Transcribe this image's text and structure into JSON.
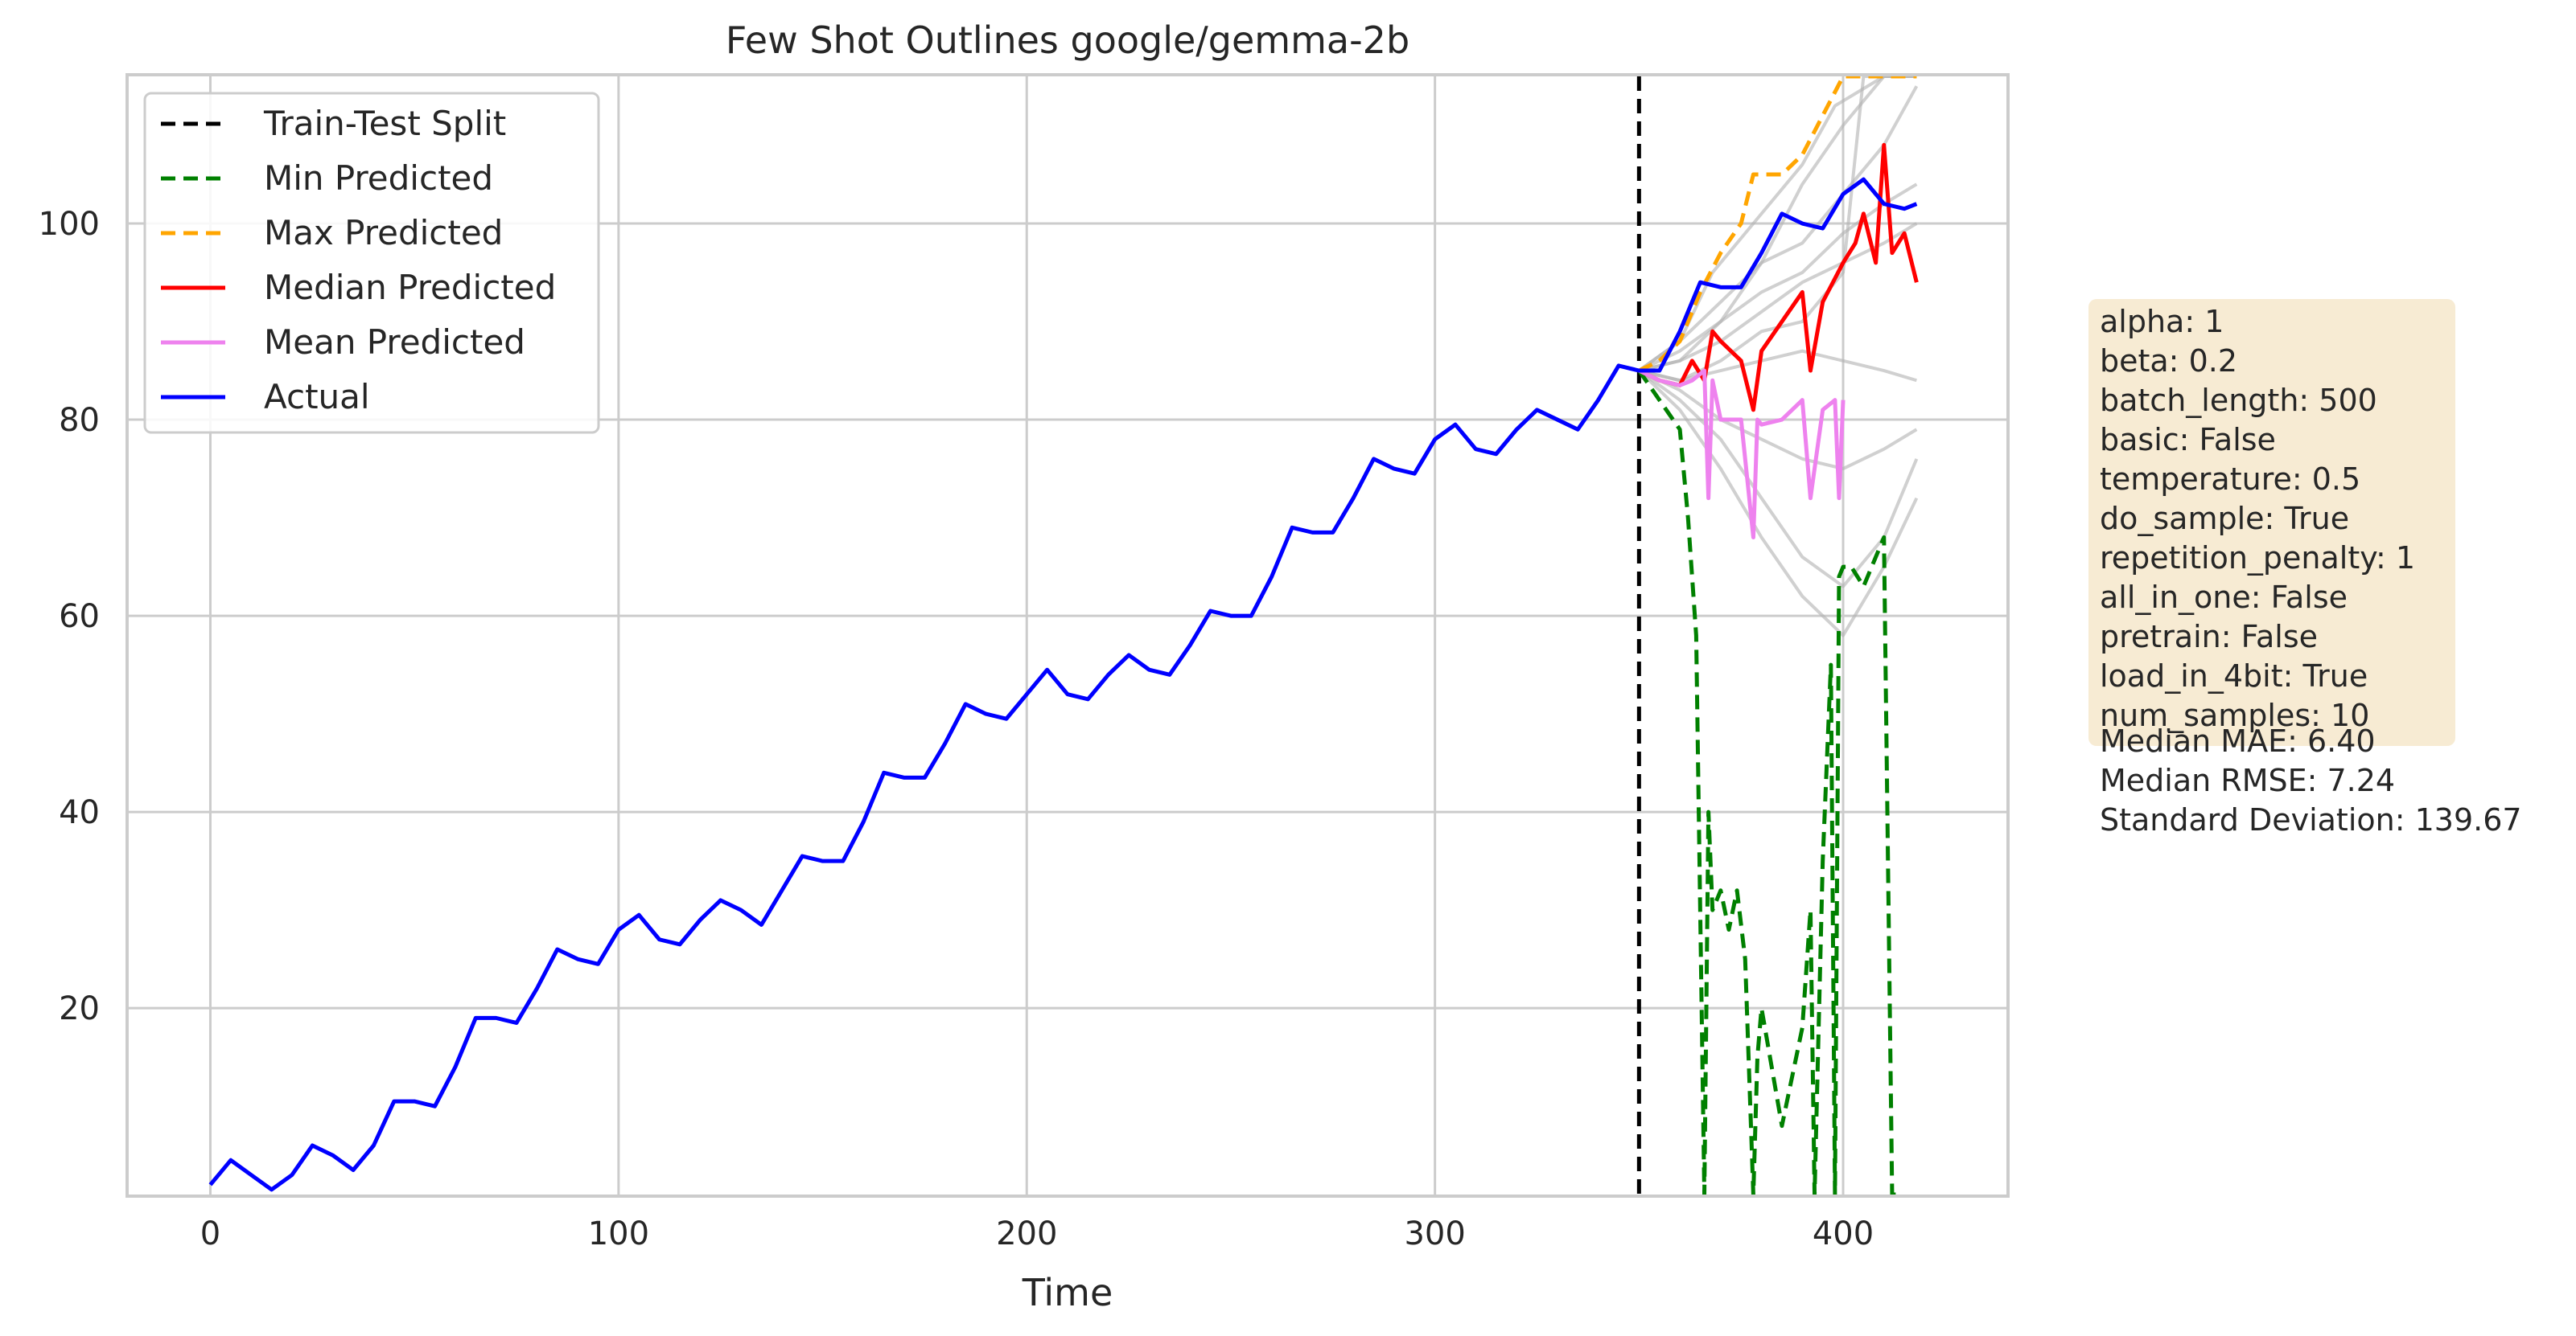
{
  "chart_data": {
    "type": "line",
    "title": "Few Shot Outlines google/gemma-2b",
    "xlabel": "Time",
    "ylabel": "",
    "xlim": [
      -20,
      440
    ],
    "ylim": [
      1,
      115
    ],
    "xticks": [
      0,
      100,
      200,
      300,
      400
    ],
    "yticks": [
      20,
      40,
      60,
      80,
      100
    ],
    "grid": true,
    "legend_position": "upper-left",
    "split_x": 350,
    "legend": [
      {
        "label": "Train-Test Split",
        "color": "#000000",
        "dashed": true
      },
      {
        "label": "Min Predicted",
        "color": "#008000",
        "dashed": true
      },
      {
        "label": "Max Predicted",
        "color": "#ffa500",
        "dashed": true
      },
      {
        "label": "Median Predicted",
        "color": "#ff0000",
        "dashed": false
      },
      {
        "label": "Mean Predicted",
        "color": "#ee82ee",
        "dashed": false
      },
      {
        "label": "Actual",
        "color": "#0000ff",
        "dashed": false
      }
    ],
    "actual": {
      "x": [
        0,
        5,
        10,
        15,
        20,
        25,
        30,
        35,
        40,
        45,
        50,
        55,
        60,
        65,
        70,
        75,
        80,
        85,
        90,
        95,
        100,
        105,
        110,
        115,
        120,
        125,
        130,
        135,
        140,
        145,
        150,
        155,
        160,
        165,
        170,
        175,
        180,
        185,
        190,
        195,
        200,
        205,
        210,
        215,
        220,
        225,
        230,
        235,
        240,
        245,
        250,
        255,
        260,
        265,
        270,
        275,
        280,
        285,
        290,
        295,
        300,
        305,
        310,
        315,
        320,
        325,
        330,
        335,
        340,
        345,
        350,
        355,
        360,
        365,
        370,
        375,
        380,
        385,
        390,
        395,
        400,
        405,
        410,
        415,
        418
      ],
      "y": [
        2,
        4.5,
        3,
        1.5,
        3,
        6,
        5,
        3.5,
        6,
        10.5,
        10.5,
        10,
        14,
        19,
        19,
        18.5,
        22,
        26,
        25,
        24.5,
        28,
        29.5,
        27,
        26.5,
        29,
        31,
        30,
        28.5,
        32,
        35.5,
        35,
        35,
        39,
        44,
        43.5,
        43.5,
        47,
        51,
        50,
        49.5,
        52,
        54.5,
        52,
        51.5,
        54,
        56,
        54.5,
        54,
        57,
        60.5,
        60,
        60,
        64,
        69,
        68.5,
        68.5,
        72,
        76,
        75,
        74.5,
        78,
        79.5,
        77,
        76.5,
        79,
        81,
        80,
        79,
        82,
        85.5,
        85,
        85,
        89,
        94,
        93.5,
        93.5,
        97,
        101,
        100,
        99.5,
        103,
        104.5,
        102,
        101.5,
        102
      ]
    },
    "median": {
      "x": [
        350,
        355,
        360,
        363,
        366,
        368,
        370,
        375,
        378,
        380,
        385,
        390,
        392,
        395,
        400,
        403,
        405,
        408,
        410,
        412,
        415,
        418
      ],
      "y": [
        85,
        84,
        83.5,
        86,
        84,
        89,
        88,
        86,
        81,
        87,
        90,
        93,
        85,
        92,
        96,
        98,
        101,
        96,
        108,
        97,
        99,
        94
      ]
    },
    "mean": {
      "x": [
        350,
        355,
        360,
        363,
        366,
        367,
        368,
        370,
        375,
        378,
        379,
        380,
        385,
        390,
        392,
        393,
        395,
        398,
        399,
        400
      ],
      "y": [
        85,
        84,
        83.5,
        84,
        85,
        72,
        84,
        80,
        80,
        68,
        80,
        79.5,
        80,
        82,
        72,
        75,
        81,
        82,
        72,
        82
      ]
    },
    "max_pred": {
      "x": [
        350,
        355,
        360,
        365,
        370,
        375,
        378,
        380,
        385,
        390,
        395,
        400,
        405,
        410,
        415,
        418
      ],
      "y": [
        85,
        86,
        88,
        93,
        97,
        100,
        105,
        105,
        105,
        107,
        111,
        117,
        118,
        118,
        118,
        118
      ]
    },
    "min_pred": {
      "x": [
        350,
        355,
        360,
        362,
        364,
        366,
        367,
        368,
        370,
        372,
        374,
        376,
        378,
        379,
        380,
        385,
        390,
        392,
        393,
        395,
        397,
        398,
        399,
        400,
        402,
        405,
        410,
        412,
        413
      ],
      "y": [
        85,
        82,
        79,
        70,
        58,
        1,
        40,
        30,
        32,
        28,
        32,
        25,
        1,
        15,
        20,
        8,
        18,
        30,
        1,
        35,
        55,
        1,
        64,
        65,
        65,
        63,
        68,
        1,
        1
      ]
    },
    "samples": [
      {
        "x": [
          350,
          360,
          370,
          380,
          390,
          400,
          410,
          418
        ],
        "y": [
          85,
          88,
          92,
          96,
          98,
          103,
          108,
          114
        ]
      },
      {
        "x": [
          350,
          360,
          370,
          380,
          390,
          400,
          410,
          418
        ],
        "y": [
          85,
          87,
          90,
          93,
          95,
          99,
          102,
          104
        ]
      },
      {
        "x": [
          350,
          360,
          370,
          380,
          390,
          400,
          410,
          418
        ],
        "y": [
          85,
          86,
          88,
          91,
          94,
          96,
          98,
          100
        ]
      },
      {
        "x": [
          350,
          360,
          370,
          380,
          390,
          400,
          410,
          418
        ],
        "y": [
          85,
          84,
          85,
          86,
          87,
          86,
          85,
          84
        ]
      },
      {
        "x": [
          350,
          360,
          370,
          380,
          390,
          400,
          410,
          418
        ],
        "y": [
          85,
          83,
          80,
          78,
          76,
          75,
          77,
          79
        ]
      },
      {
        "x": [
          350,
          360,
          370,
          380,
          390,
          400,
          410,
          418
        ],
        "y": [
          85,
          82,
          78,
          72,
          66,
          63,
          68,
          76
        ]
      },
      {
        "x": [
          350,
          360,
          370,
          380,
          390,
          400,
          410,
          418
        ],
        "y": [
          85,
          81,
          75,
          68,
          62,
          58,
          65,
          72
        ]
      },
      {
        "x": [
          350,
          360,
          368,
          378,
          390,
          398,
          410,
          418
        ],
        "y": [
          85,
          88,
          95,
          100,
          106,
          112,
          118,
          118
        ]
      },
      {
        "x": [
          350,
          360,
          370,
          380,
          390,
          400,
          410,
          418
        ],
        "y": [
          85,
          86,
          90,
          96,
          104,
          110,
          116,
          118
        ]
      },
      {
        "x": [
          350,
          360,
          370,
          380,
          390,
          400,
          405,
          410,
          418
        ],
        "y": [
          85,
          84,
          86,
          89,
          90,
          95,
          118,
          118,
          118
        ]
      }
    ]
  },
  "params_text": "alpha: 1\nbeta: 0.2\nbatch_length: 500\nbasic: False\ntemperature: 0.5\ndo_sample: True\nrepetition_penalty: 1\nall_in_one: False\npretrain: False\nload_in_4bit: True\nnum_samples: 10",
  "metrics_text": "Median MAE: 6.40\nMedian RMSE: 7.24\nStandard Deviation: 139.67"
}
